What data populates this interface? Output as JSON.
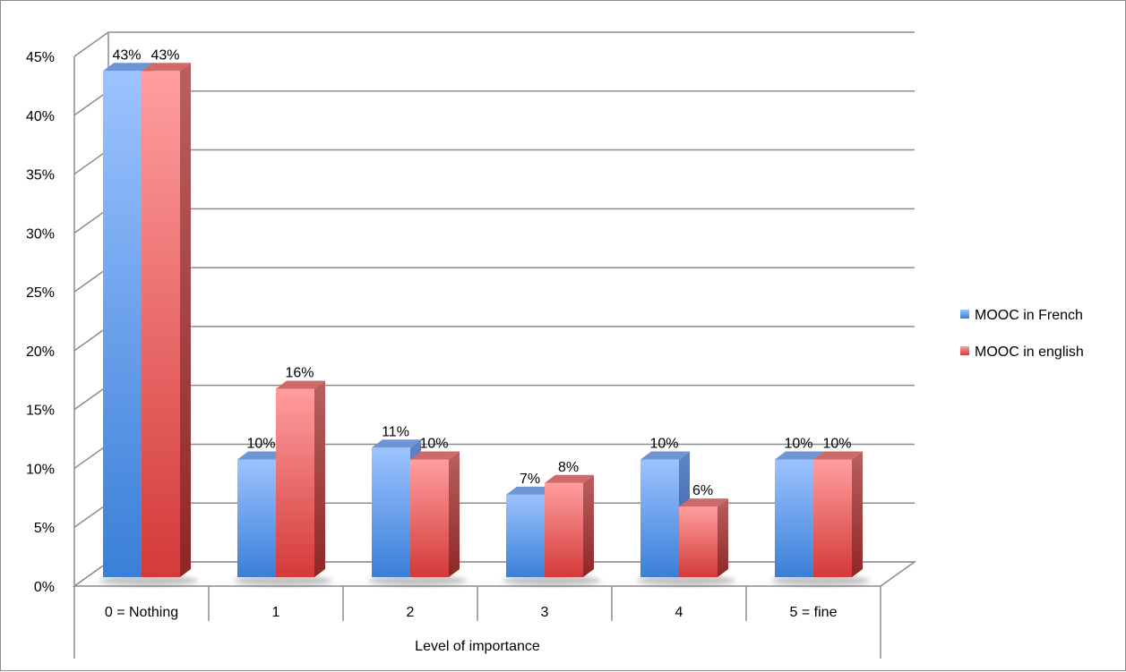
{
  "chart_data": {
    "type": "bar",
    "title": "",
    "xlabel": "Level of importance",
    "ylabel": "",
    "categories": [
      "0 = Nothing",
      "1",
      "2",
      "3",
      "4",
      "5 = fine"
    ],
    "series": [
      {
        "name": "MOOC in French",
        "values": [
          43,
          10,
          11,
          7,
          10,
          10
        ],
        "labels": [
          "43%",
          "10%",
          "11%",
          "7%",
          "10%",
          "10%"
        ],
        "color": "#4f81bd"
      },
      {
        "name": "MOOC in english",
        "values": [
          43,
          16,
          10,
          8,
          6,
          10
        ],
        "labels": [
          "43%",
          "16%",
          "10%",
          "8%",
          "6%",
          "10%"
        ],
        "color": "#c0504d"
      }
    ],
    "ylim": [
      0,
      45
    ],
    "yticks": [
      0,
      5,
      10,
      15,
      20,
      25,
      30,
      35,
      40,
      45
    ],
    "ytick_labels": [
      "0%",
      "5%",
      "10%",
      "15%",
      "20%",
      "25%",
      "30%",
      "35%",
      "40%",
      "45%"
    ],
    "grid": true,
    "legend": "right",
    "three_d": true
  }
}
